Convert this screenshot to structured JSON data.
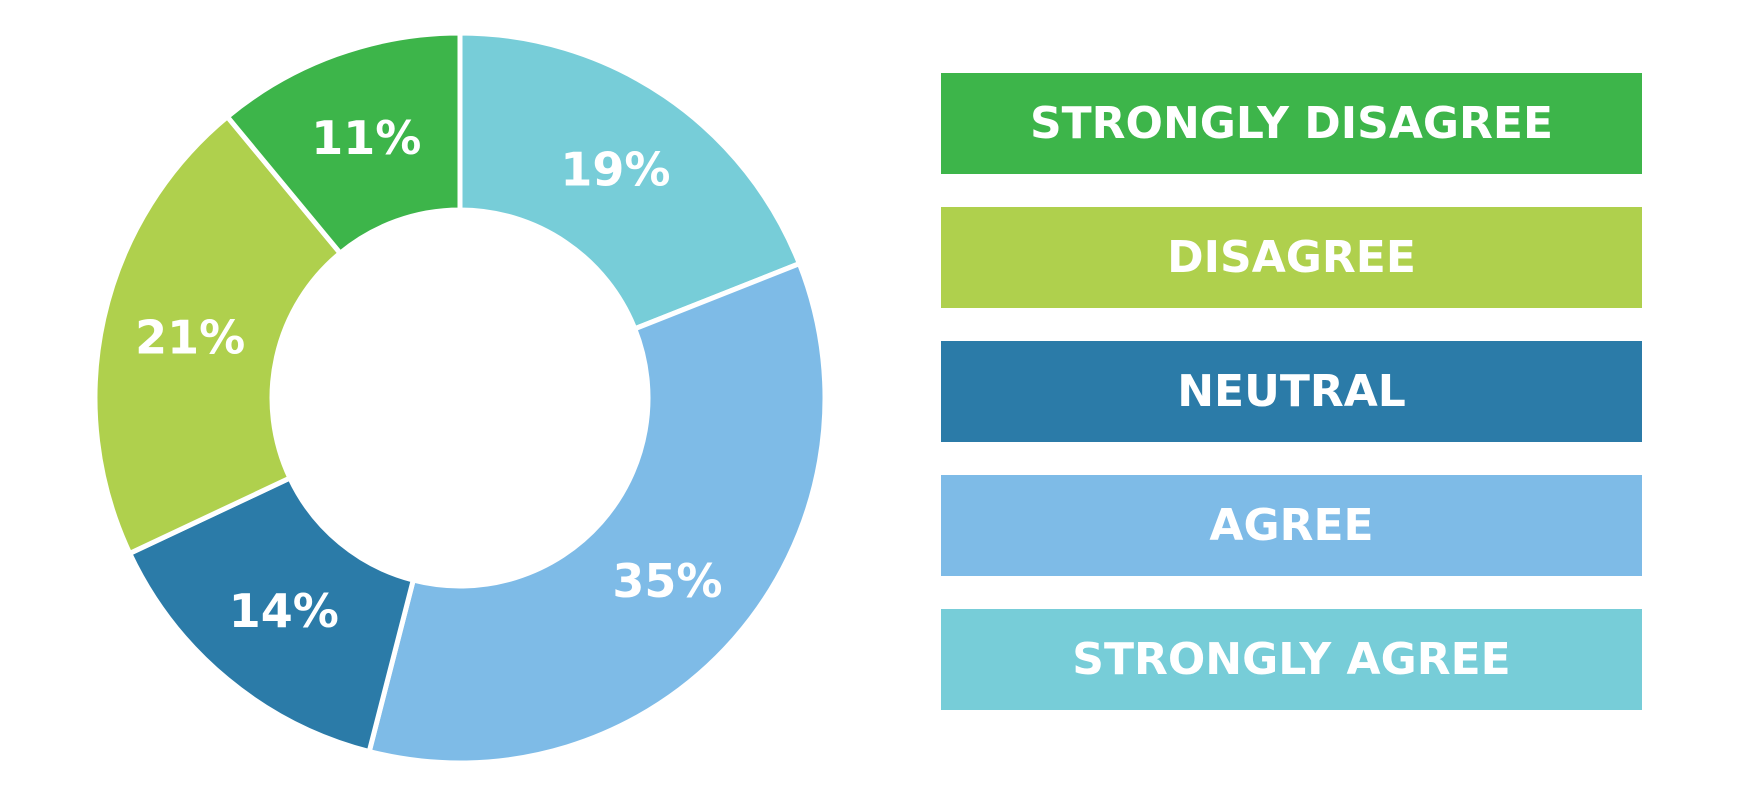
{
  "chart_data": {
    "type": "donut",
    "categories": [
      "STRONGLY DISAGREE",
      "DISAGREE",
      "NEUTRAL",
      "AGREE",
      "STRONGLY AGREE"
    ],
    "values": [
      11,
      21,
      14,
      35,
      19
    ],
    "value_labels": [
      "11%",
      "21%",
      "14%",
      "35%",
      "19%"
    ],
    "colors": [
      "#3db54a",
      "#afd04d",
      "#2b7ba8",
      "#7ebbe7",
      "#77cdd8"
    ],
    "legend": "right"
  }
}
